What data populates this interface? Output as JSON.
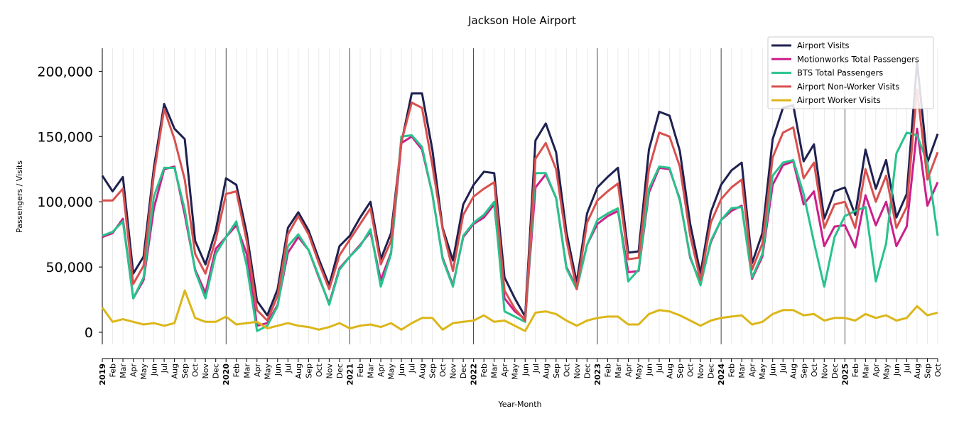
{
  "chart_data": {
    "type": "line",
    "title": "Jackson Hole Airport",
    "xlabel": "Year-Month",
    "ylabel": "Passengers / Visits",
    "ylim": [
      -10000,
      217000
    ],
    "yticks": [
      0,
      50000,
      100000,
      150000,
      200000
    ],
    "ytick_labels": [
      "0",
      "50,000",
      "100,000",
      "150,000",
      "200,000"
    ],
    "legend_position": "top-right",
    "year_labels": [
      "2019",
      "2020",
      "2021",
      "2022",
      "2023",
      "2024",
      "2025"
    ],
    "month_labels": [
      "Feb",
      "Mar",
      "Apr",
      "May",
      "Jun",
      "Jul",
      "Aug",
      "Sep",
      "Oct",
      "Nov",
      "Dec"
    ],
    "x": [
      "2019-01",
      "2019-02",
      "2019-03",
      "2019-04",
      "2019-05",
      "2019-06",
      "2019-07",
      "2019-08",
      "2019-09",
      "2019-10",
      "2019-11",
      "2019-12",
      "2020-01",
      "2020-02",
      "2020-03",
      "2020-04",
      "2020-05",
      "2020-06",
      "2020-07",
      "2020-08",
      "2020-09",
      "2020-10",
      "2020-11",
      "2020-12",
      "2021-01",
      "2021-02",
      "2021-03",
      "2021-04",
      "2021-05",
      "2021-06",
      "2021-07",
      "2021-08",
      "2021-09",
      "2021-10",
      "2021-11",
      "2021-12",
      "2022-01",
      "2022-02",
      "2022-03",
      "2022-04",
      "2022-05",
      "2022-06",
      "2022-07",
      "2022-08",
      "2022-09",
      "2022-10",
      "2022-11",
      "2022-12",
      "2023-01",
      "2023-02",
      "2023-03",
      "2023-04",
      "2023-05",
      "2023-06",
      "2023-07",
      "2023-08",
      "2023-09",
      "2023-10",
      "2023-11",
      "2023-12",
      "2024-01",
      "2024-02",
      "2024-03",
      "2024-04",
      "2024-05",
      "2024-06",
      "2024-07",
      "2024-08",
      "2024-09",
      "2024-10",
      "2024-11",
      "2024-12",
      "2025-01",
      "2025-02",
      "2025-03",
      "2025-04",
      "2025-05",
      "2025-06",
      "2025-07",
      "2025-08",
      "2025-09",
      "2025-10"
    ],
    "series": [
      {
        "name": "Airport Visits",
        "color": "#1f2150",
        "values": [
          120000,
          108000,
          119000,
          45000,
          58000,
          126000,
          175000,
          156000,
          148000,
          70000,
          52000,
          78000,
          118000,
          113000,
          76000,
          24000,
          13000,
          33000,
          80000,
          92000,
          78000,
          56000,
          36000,
          66000,
          74000,
          88000,
          100000,
          56000,
          76000,
          145000,
          183000,
          183000,
          140000,
          80000,
          55000,
          98000,
          113000,
          123000,
          122000,
          42000,
          26000,
          12000,
          147000,
          160000,
          138000,
          77000,
          38000,
          91000,
          111000,
          119000,
          126000,
          61000,
          62000,
          140000,
          169000,
          166000,
          139000,
          83000,
          45000,
          92000,
          113000,
          124000,
          130000,
          53000,
          76000,
          148000,
          172000,
          174000,
          131000,
          144000,
          87000,
          108000,
          111000,
          90000,
          140000,
          110000,
          132000,
          88000,
          106000,
          207000,
          130000,
          152000
        ]
      },
      {
        "name": "Motionworks Total Passengers",
        "color": "#cc1f8a",
        "values": [
          73000,
          76000,
          87000,
          26000,
          40000,
          95000,
          125000,
          127000,
          90000,
          48000,
          30000,
          64000,
          73000,
          82000,
          60000,
          5000,
          7000,
          21000,
          61000,
          73000,
          63000,
          42000,
          22000,
          49000,
          58000,
          67000,
          77000,
          40000,
          61000,
          145000,
          150000,
          140000,
          106000,
          57000,
          36000,
          73000,
          83000,
          88000,
          98000,
          26000,
          16000,
          10000,
          111000,
          121000,
          103000,
          50000,
          34000,
          67000,
          83000,
          89000,
          93000,
          46000,
          47000,
          107000,
          126000,
          125000,
          102000,
          57000,
          38000,
          69000,
          86000,
          93000,
          97000,
          41000,
          58000,
          113000,
          128000,
          131000,
          98000,
          108000,
          66000,
          81000,
          82000,
          65000,
          105000,
          82000,
          100000,
          66000,
          81000,
          156000,
          97000,
          115000
        ]
      },
      {
        "name": "BTS Total Passengers",
        "color": "#27c38c",
        "values": [
          74000,
          77000,
          85000,
          26000,
          42000,
          104000,
          126000,
          126000,
          94000,
          47000,
          26000,
          60000,
          73000,
          85000,
          51000,
          1000,
          5000,
          20000,
          66000,
          75000,
          63000,
          43000,
          21000,
          48000,
          58000,
          66000,
          79000,
          35000,
          60000,
          150000,
          151000,
          142000,
          106000,
          56000,
          35000,
          74000,
          84000,
          90000,
          100000,
          16000,
          12000,
          8000,
          122000,
          122000,
          103000,
          49000,
          33000,
          67000,
          86000,
          91000,
          95000,
          39000,
          48000,
          110000,
          127000,
          126000,
          101000,
          58000,
          36000,
          70000,
          86000,
          95000,
          96000,
          42000,
          60000,
          120000,
          130000,
          132000,
          106000,
          69000,
          35000,
          73000,
          89000,
          93000,
          96000,
          39000,
          68000,
          137000,
          153000,
          151000,
          130000,
          74000
        ]
      },
      {
        "name": "Airport Non-Worker Visits",
        "color": "#d9504e",
        "values": [
          101000,
          101000,
          110000,
          37000,
          51000,
          121000,
          171000,
          148000,
          117000,
          60000,
          45000,
          71000,
          106000,
          108000,
          70000,
          17000,
          9000,
          28000,
          75000,
          89000,
          75000,
          53000,
          33000,
          59000,
          71000,
          83000,
          95000,
          52000,
          70000,
          146000,
          176000,
          172000,
          128000,
          79000,
          47000,
          90000,
          104000,
          110000,
          115000,
          32000,
          18000,
          9000,
          133000,
          145000,
          125000,
          71000,
          33000,
          84000,
          101000,
          108000,
          114000,
          56000,
          57000,
          125000,
          153000,
          150000,
          127000,
          74000,
          40000,
          84000,
          102000,
          111000,
          117000,
          48000,
          68000,
          134000,
          153000,
          157000,
          118000,
          130000,
          80000,
          98000,
          100000,
          80000,
          125000,
          100000,
          120000,
          80000,
          96000,
          186000,
          117000,
          138000
        ]
      },
      {
        "name": "Airport Worker Visits",
        "color": "#dcb61a",
        "values": [
          19000,
          8000,
          10000,
          8000,
          6000,
          7000,
          5000,
          7000,
          32000,
          11000,
          8000,
          8000,
          12000,
          6000,
          7000,
          8000,
          3000,
          5000,
          7000,
          5000,
          4000,
          2000,
          4000,
          7000,
          3000,
          5000,
          6000,
          4000,
          7000,
          2000,
          7000,
          11000,
          11000,
          2000,
          7000,
          8000,
          9000,
          13000,
          8000,
          9000,
          5000,
          1000,
          15000,
          16000,
          14000,
          9000,
          5000,
          9000,
          11000,
          12000,
          12000,
          6000,
          6000,
          14000,
          17000,
          16000,
          13000,
          9000,
          5000,
          9000,
          11000,
          12000,
          13000,
          6000,
          8000,
          14000,
          17000,
          17000,
          13000,
          14000,
          9000,
          11000,
          11000,
          9000,
          14000,
          11000,
          13000,
          9000,
          11000,
          20000,
          13000,
          15000
        ]
      }
    ]
  }
}
